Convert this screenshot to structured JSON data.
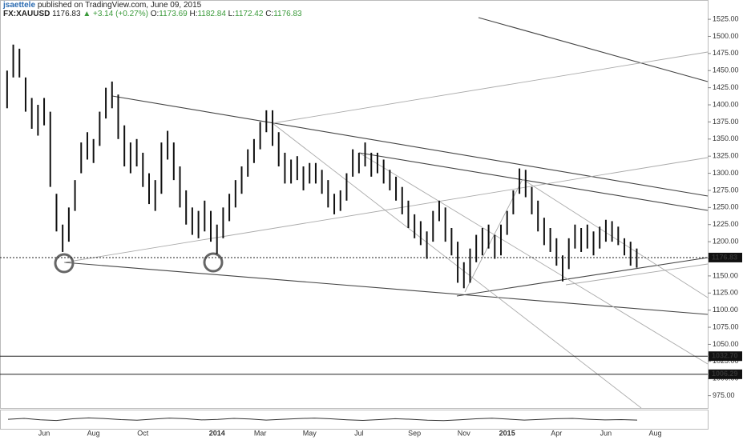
{
  "header": {
    "author": "jsaettele",
    "published": "published on TradingView.com, June 09, 2015",
    "symbol": "FX:XAUUSD",
    "price": "1176.83",
    "change": "▲ +3.14 (+0.27%)",
    "open_label": "O:",
    "open": "1173.69",
    "high_label": "H:",
    "high": "1182.84",
    "low_label": "L:",
    "low": "1172.42",
    "close_label": "C:",
    "close": "1176.83"
  },
  "chart_data": {
    "type": "hlbar",
    "color": "#111111",
    "categories": [
      null,
      null,
      null,
      null,
      null,
      null,
      "Jun",
      null,
      null,
      null,
      null,
      null,
      null,
      null,
      "Aug",
      null,
      null,
      null,
      null,
      null,
      null,
      null,
      "Oct",
      null,
      null,
      null,
      null,
      null,
      null,
      null,
      null,
      null,
      null,
      null,
      "2014",
      null,
      null,
      null,
      null,
      null,
      null,
      "Mar",
      null,
      null,
      null,
      null,
      null,
      null,
      null,
      "May",
      null,
      null,
      null,
      null,
      null,
      null,
      null,
      "Jul",
      null,
      null,
      null,
      null,
      null,
      null,
      null,
      null,
      "Sep",
      null,
      null,
      null,
      null,
      null,
      null,
      null,
      "Nov",
      null,
      null,
      null,
      null,
      null,
      null,
      "2015",
      null,
      null,
      null,
      null,
      null,
      null,
      null,
      "Apr",
      null,
      null,
      null,
      null,
      null,
      null,
      null,
      "Jun",
      null,
      null,
      null,
      null,
      null,
      null,
      null,
      "Aug",
      null,
      null,
      null,
      null,
      null,
      null,
      null,
      null
    ],
    "high": [
      1450,
      1488,
      1482,
      1440,
      1410,
      1400,
      1410,
      1390,
      1270,
      1225,
      1250,
      1290,
      1345,
      1360,
      1350,
      1390,
      1425,
      1434,
      1415,
      1370,
      1345,
      1350,
      1330,
      1300,
      1290,
      1345,
      1362,
      1345,
      1310,
      1275,
      1250,
      1245,
      1260,
      1245,
      1225,
      1250,
      1270,
      1290,
      1310,
      1335,
      1350,
      1375,
      1392,
      1392,
      1360,
      1330,
      1320,
      1325,
      1310,
      1315,
      1315,
      1305,
      1290,
      1270,
      1275,
      1300,
      1335,
      1330,
      1345,
      1330,
      1330,
      1320,
      1305,
      1295,
      1280,
      1260,
      1240,
      1230,
      1215,
      1245,
      1260,
      1250,
      1220,
      1200,
      1170,
      1190,
      1210,
      1220,
      1225,
      1210,
      1225,
      1245,
      1275,
      1307,
      1305,
      1280,
      1260,
      1235,
      1220,
      1205,
      1180,
      1205,
      1225,
      1220,
      1225,
      1215,
      1222,
      1232,
      1230,
      1222,
      1205,
      1200,
      1190,
      null,
      null,
      null,
      null,
      null,
      null,
      null,
      null,
      null,
      null,
      null
    ],
    "low": [
      1395,
      1440,
      1440,
      1390,
      1365,
      1355,
      1370,
      1280,
      1215,
      1185,
      1200,
      1245,
      1300,
      1320,
      1315,
      1340,
      1380,
      1395,
      1350,
      1310,
      1300,
      1310,
      1280,
      1255,
      1245,
      1270,
      1320,
      1290,
      1250,
      1225,
      1210,
      1205,
      1215,
      1200,
      1182,
      1205,
      1230,
      1250,
      1270,
      1295,
      1315,
      1335,
      1360,
      1340,
      1310,
      1285,
      1285,
      1290,
      1275,
      1285,
      1285,
      1270,
      1250,
      1240,
      1245,
      1260,
      1295,
      1300,
      1310,
      1295,
      1300,
      1285,
      1275,
      1260,
      1240,
      1220,
      1205,
      1195,
      1175,
      1200,
      1230,
      1200,
      1180,
      1140,
      1132,
      1140,
      1170,
      1180,
      1190,
      1175,
      1180,
      1210,
      1240,
      1270,
      1265,
      1240,
      1215,
      1195,
      1185,
      1165,
      1142,
      1160,
      1190,
      1185,
      1190,
      1180,
      1190,
      1200,
      1200,
      1195,
      1180,
      1165,
      1162,
      null,
      null,
      null,
      null,
      null,
      null,
      null,
      null,
      null,
      null,
      null
    ],
    "ylim": [
      957,
      1552
    ],
    "yticks": [
      {
        "value": 975,
        "label": "975.00"
      },
      {
        "value": 1000,
        "label": "1000.00"
      },
      {
        "value": 1025,
        "label": "1025.00"
      },
      {
        "value": 1050,
        "label": "1050.00"
      },
      {
        "value": 1075,
        "label": "1075.00"
      },
      {
        "value": 1100,
        "label": "1100.00"
      },
      {
        "value": 1125,
        "label": "1125.00"
      },
      {
        "value": 1150,
        "label": "1150.00"
      },
      {
        "value": 1175,
        "label": "1175.00"
      },
      {
        "value": 1200,
        "label": "1200.00"
      },
      {
        "value": 1225,
        "label": "1225.00"
      },
      {
        "value": 1250,
        "label": "1250.00"
      },
      {
        "value": 1275,
        "label": "1275.00"
      },
      {
        "value": 1300,
        "label": "1300.00"
      },
      {
        "value": 1325,
        "label": "1325.00"
      },
      {
        "value": 1350,
        "label": "1350.00"
      },
      {
        "value": 1375,
        "label": "1375.00"
      },
      {
        "value": 1400,
        "label": "1400.00"
      },
      {
        "value": 1425,
        "label": "1425.00"
      },
      {
        "value": 1450,
        "label": "1450.00"
      },
      {
        "value": 1475,
        "label": "1475.00"
      },
      {
        "value": 1500,
        "label": "1500.00"
      },
      {
        "value": 1525,
        "label": "1525.00"
      }
    ],
    "price_lines": [
      {
        "value": 1176.83,
        "label": "1176.83",
        "style": "dotted"
      },
      {
        "value": 1032.7,
        "label": "1032.70",
        "style": "solid"
      },
      {
        "value": 1006.29,
        "label": "1006.29",
        "style": "solid"
      }
    ],
    "indicator": {
      "values": [
        52,
        58,
        49,
        44,
        55,
        61,
        57,
        50,
        46,
        53,
        60,
        56,
        48,
        51,
        58,
        54,
        47,
        52,
        57,
        60,
        55,
        49,
        45,
        50,
        56,
        52,
        46,
        43,
        49,
        55,
        59,
        53,
        47,
        51,
        56,
        58,
        52,
        48,
        50,
        47
      ],
      "ylim": [
        0,
        100
      ]
    }
  }
}
